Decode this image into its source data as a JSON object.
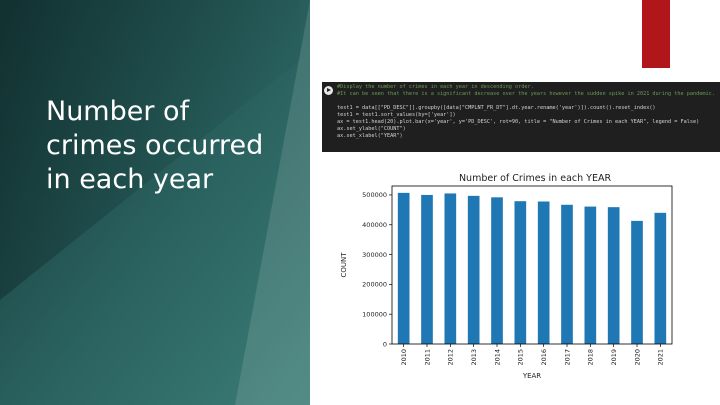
{
  "slide": {
    "title": "Number of crimes occurred in each year",
    "colors": {
      "bg_dark": "#153a3a",
      "bg_teal": "#2f6e6a",
      "accent_red": "#b0161a",
      "code_bg": "#1f1f1f",
      "bar": "#1f77b4"
    }
  },
  "code": {
    "lines": [
      "#Display the number of crimes in each year in descending order.",
      "#It can be seen that there is a significant decrease over the years however the sudden spike in 2021 during the pandemic.",
      "",
      "test1 = data[[\"PD_DESC\"]].groupby([data[\"CMPLNT_FR_DT\"].dt.year.rename('year')]).count().reset_index()",
      "test1 = test1.sort_values(by=['year'])",
      "ax = test1.head(20).plot.bar(x='year', y='PD_DESC', rot=90, title = \"Number of Crimes in each YEAR\", legend = False)",
      "ax.set_ylabel(\"COUNT\")",
      "ax.set_xlabel(\"YEAR\")"
    ]
  },
  "chart_data": {
    "type": "bar",
    "title": "Number of Crimes in each YEAR",
    "xlabel": "YEAR",
    "ylabel": "COUNT",
    "categories": [
      "2010",
      "2011",
      "2012",
      "2013",
      "2014",
      "2015",
      "2016",
      "2017",
      "2018",
      "2019",
      "2020",
      "2021"
    ],
    "values": [
      507000,
      500000,
      505000,
      497000,
      492000,
      479000,
      478000,
      467000,
      461000,
      459000,
      413000,
      440000
    ],
    "ylim": [
      0,
      530000
    ],
    "yticks": [
      0,
      100000,
      200000,
      300000,
      400000,
      500000
    ],
    "ytick_labels": [
      "0",
      "100000",
      "200000",
      "300000",
      "400000",
      "500000"
    ],
    "color": "#1f77b4",
    "legend": false,
    "grid": false
  }
}
